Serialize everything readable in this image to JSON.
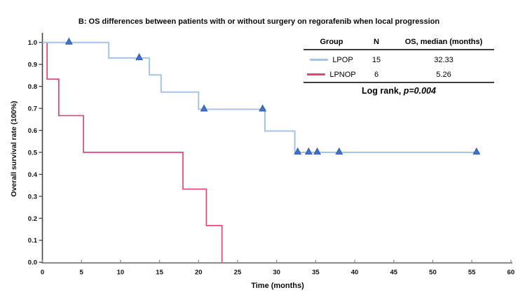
{
  "title": "B: OS differences between patients with or without surgery on regorafenib when local progression",
  "chart_data": {
    "type": "line",
    "subtype": "kaplan-meier-step",
    "title": "B: OS differences between patients with or without surgery on regorafenib when local progression",
    "xlabel": "Time (months)",
    "ylabel": "Overall survival rate (100%)",
    "xlim": [
      0,
      60
    ],
    "ylim": [
      0.0,
      1.0
    ],
    "grid": false,
    "legend_position": "top-right",
    "x_ticks": [
      0,
      5,
      10,
      15,
      20,
      25,
      30,
      35,
      40,
      45,
      50,
      55,
      60
    ],
    "y_ticks": [
      0.0,
      0.1,
      0.2,
      0.3,
      0.4,
      0.5,
      0.6,
      0.7,
      0.8,
      0.9,
      1.0
    ],
    "y_tick_labels": [
      "0.0",
      "0.1",
      "0.2",
      "0.3",
      "0.4",
      "0.5",
      "0.6",
      "0.7",
      "0.8",
      "0.9",
      "1.0"
    ],
    "series": [
      {
        "name": "LPOP",
        "n": 15,
        "median_os_months": "32.33",
        "color": "#a6c4ea",
        "marker_color": "#4272c8",
        "marker_edge": "#2f5cae",
        "steps": [
          [
            0,
            1.0
          ],
          [
            8.5,
            0.929
          ],
          [
            13.7,
            0.852
          ],
          [
            15.2,
            0.774
          ],
          [
            20.0,
            0.696
          ],
          [
            28.5,
            0.597
          ],
          [
            32.33,
            0.5
          ]
        ],
        "end_x": 56,
        "censor_marks": [
          [
            3.4,
            1.0
          ],
          [
            12.4,
            0.929
          ],
          [
            20.7,
            0.696
          ],
          [
            28.2,
            0.696
          ],
          [
            32.7,
            0.5
          ],
          [
            34.1,
            0.5
          ],
          [
            35.2,
            0.5
          ],
          [
            38.0,
            0.5
          ],
          [
            55.6,
            0.5
          ]
        ]
      },
      {
        "name": "LPNOP",
        "n": 6,
        "median_os_months": "5.26",
        "color": "#e8426e",
        "marker_color": "#e8426e",
        "marker_edge": "#e8426e",
        "steps": [
          [
            0,
            1.0
          ],
          [
            0.6,
            0.833
          ],
          [
            2.1,
            0.667
          ],
          [
            5.26,
            0.5
          ],
          [
            18.0,
            0.333
          ],
          [
            21.0,
            0.167
          ],
          [
            23.0,
            0.0
          ]
        ],
        "end_x": 23,
        "censor_marks": []
      }
    ],
    "legend": {
      "headers": [
        "Group",
        "N",
        "OS, median (months)"
      ],
      "rows": [
        [
          "LPOP",
          "15",
          "32.33"
        ],
        [
          "LPNOP",
          "6",
          "5.26"
        ]
      ],
      "footer_prefix": "Log rank, ",
      "footer_stat": "p=0.004"
    },
    "colors": {
      "x_axis": "#8c8c8c",
      "y_axis": "#444444",
      "tick_text": "#111111"
    }
  }
}
